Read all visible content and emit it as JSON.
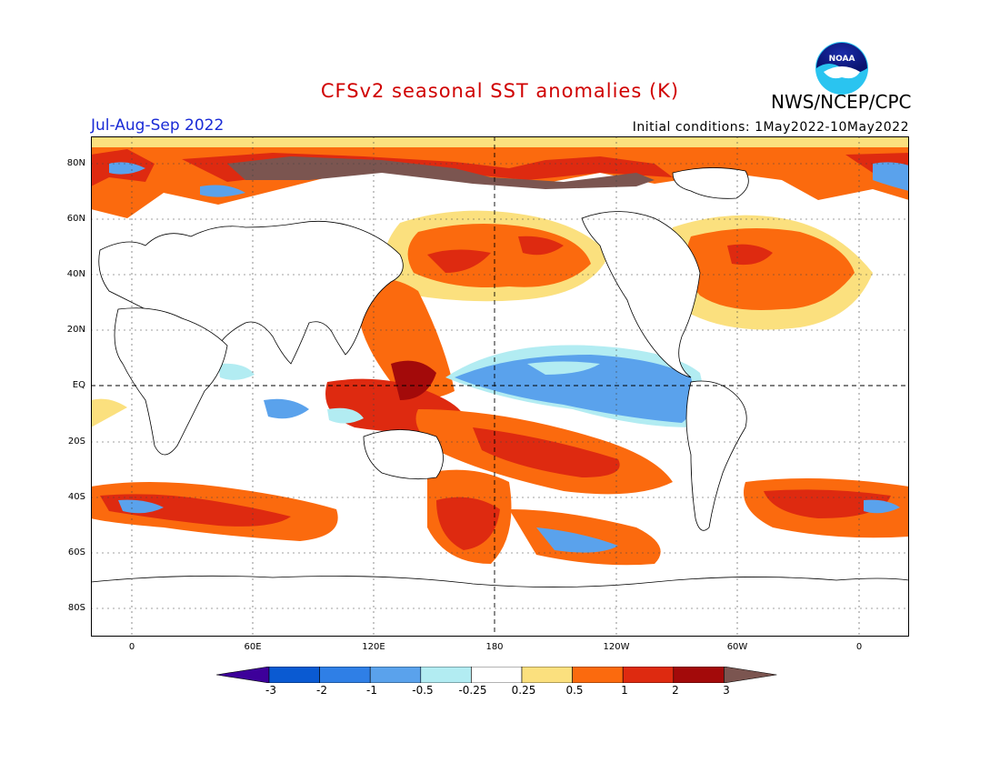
{
  "header": {
    "title": "CFSv2 seasonal SST anomalies (K)",
    "org": "NWS/NCEP/CPC",
    "season": "Jul-Aug-Sep 2022",
    "initial_conditions": "Initial conditions: 1May2022-10May2022",
    "logo_text": "NOAA"
  },
  "map": {
    "lat_labels": [
      "80N",
      "60N",
      "40N",
      "20N",
      "EQ",
      "20S",
      "40S",
      "60S",
      "80S"
    ],
    "lon_labels": [
      "0",
      "60E",
      "120E",
      "180",
      "120W",
      "60W",
      "0"
    ]
  },
  "colorbar": {
    "labels": [
      "-3",
      "-2",
      "-1",
      "-0.5",
      "-0.25",
      "0.25",
      "0.5",
      "1",
      "2",
      "3"
    ],
    "colors": [
      "#3d009a",
      "#0a5ad2",
      "#2f7fe6",
      "#5aa2ec",
      "#b2ecf2",
      "#ffffff",
      "#fbe07e",
      "#fb6a0e",
      "#de2a10",
      "#a30a0a",
      "#7b5550"
    ]
  }
}
